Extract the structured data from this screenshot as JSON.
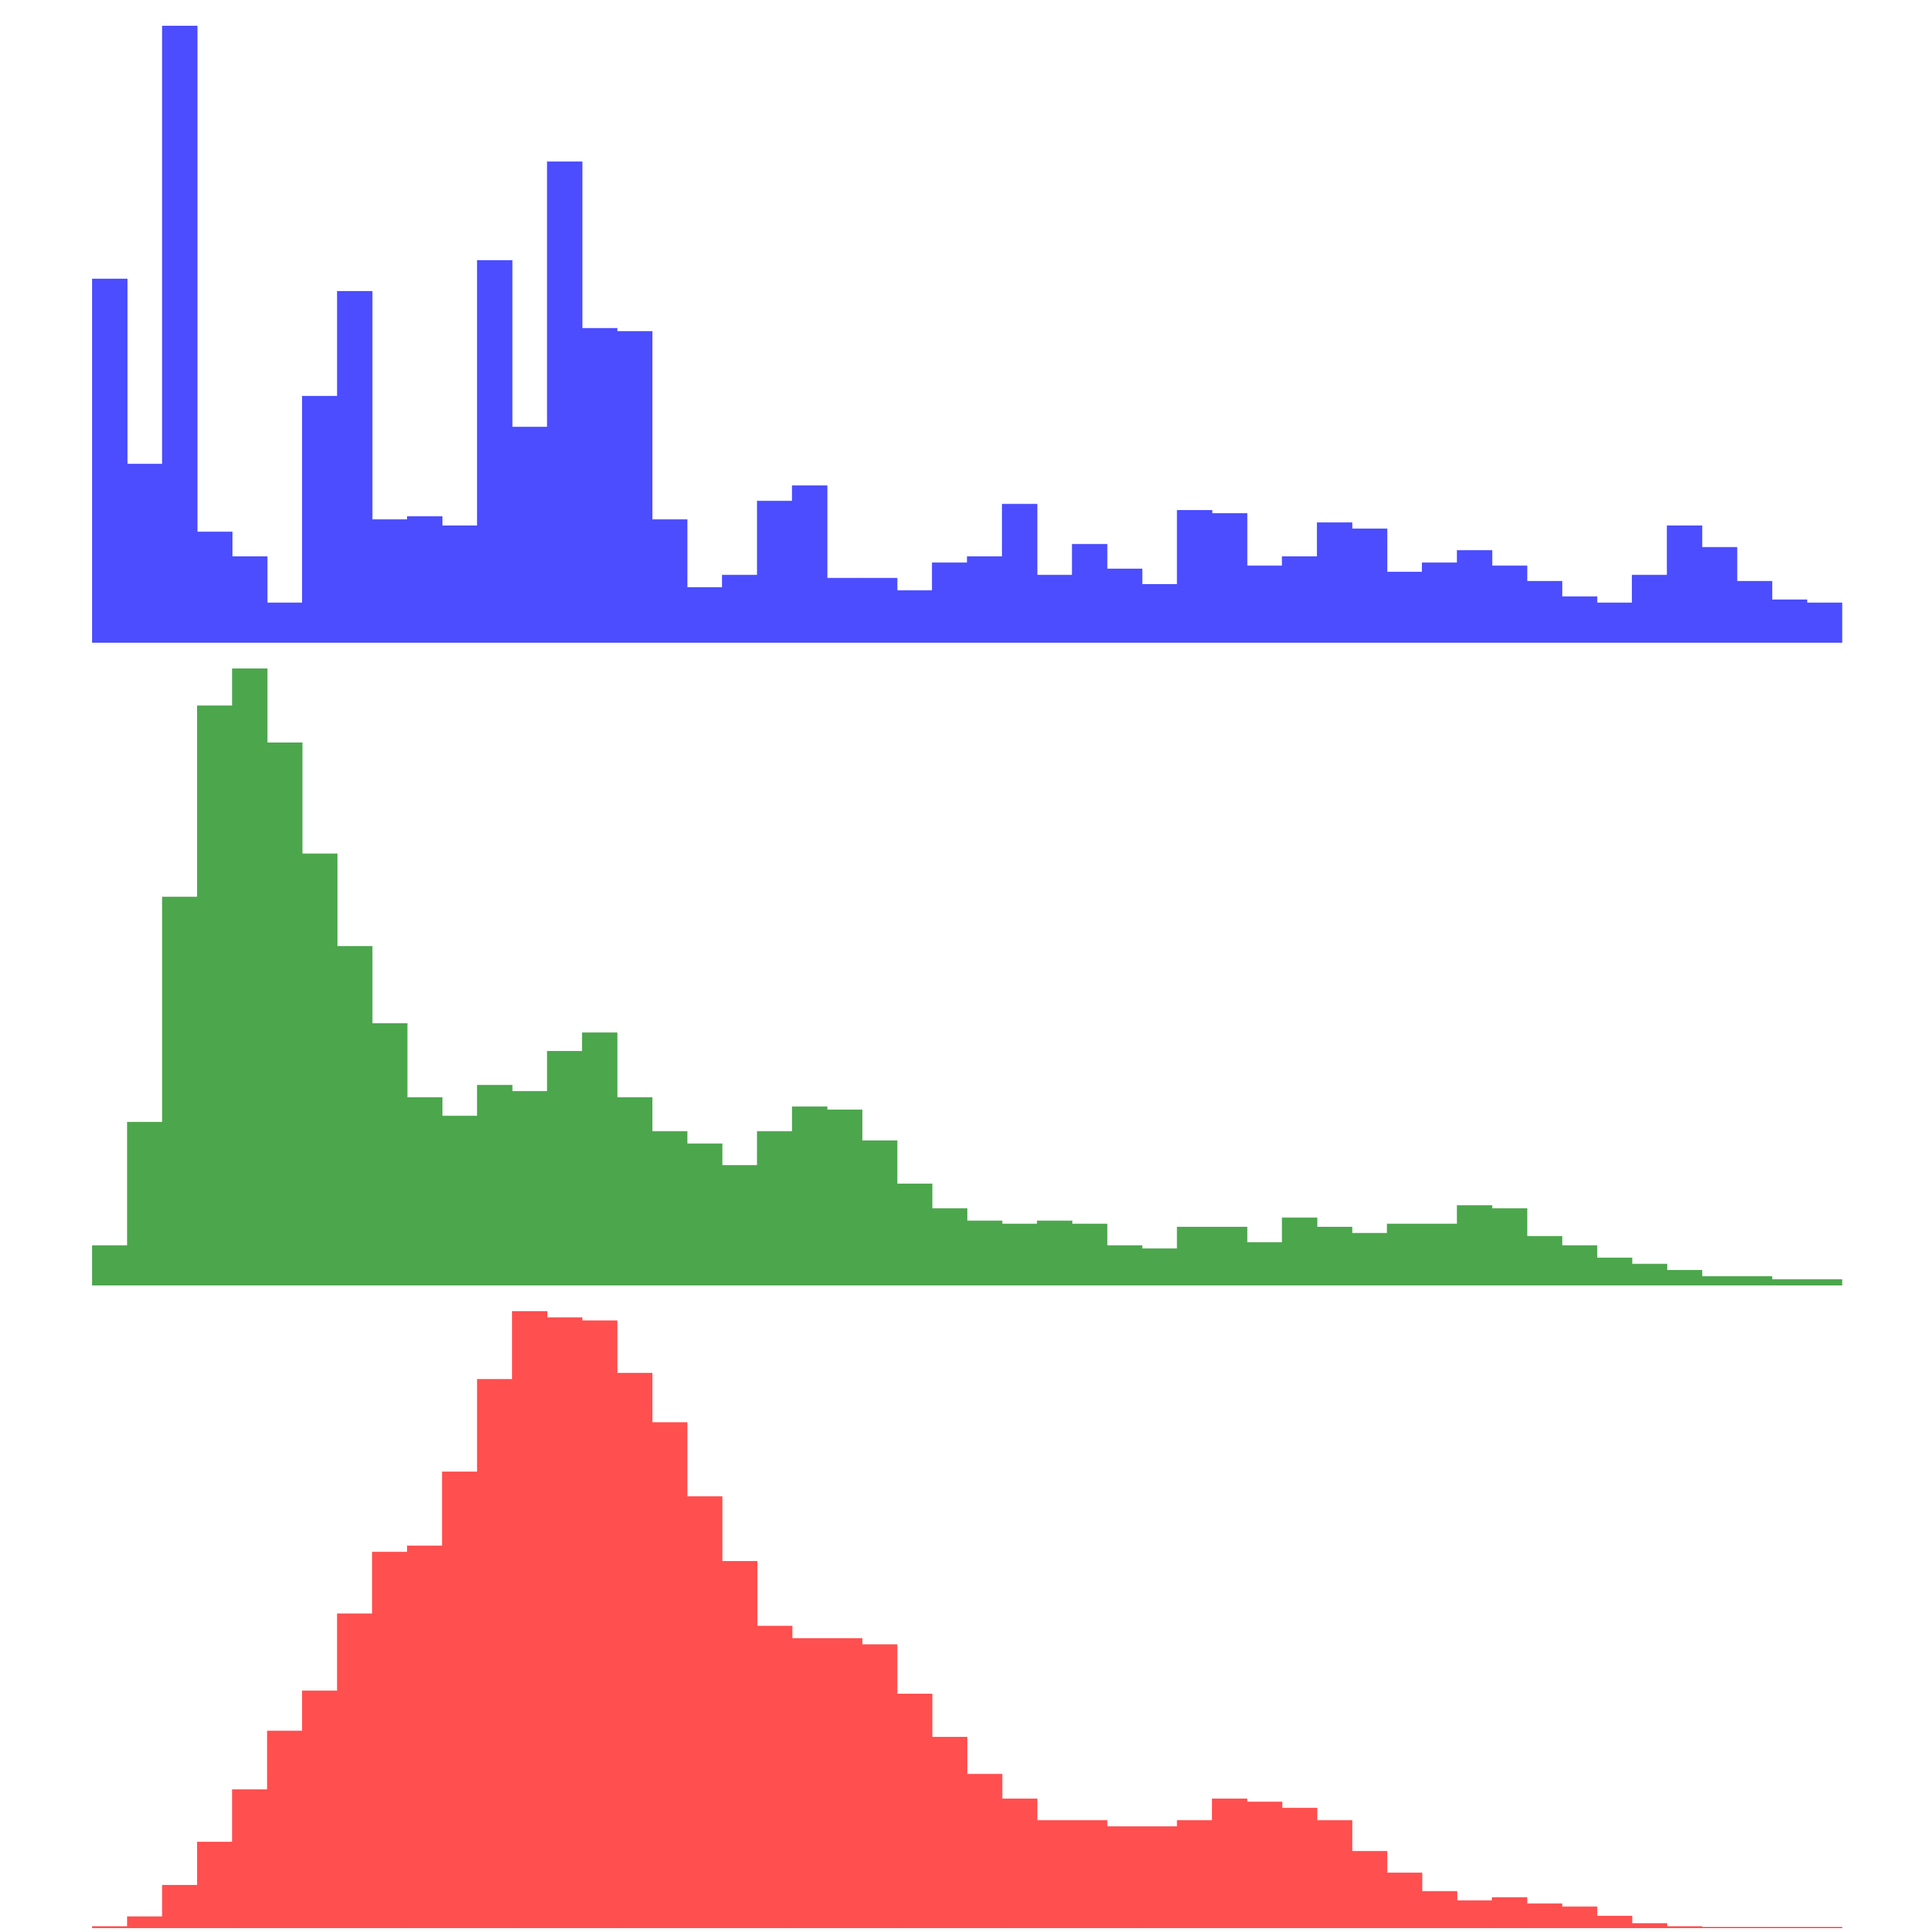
{
  "chart_data": [
    {
      "type": "bar",
      "subtype": "histogram",
      "color": "#4b4dff",
      "bins": 50,
      "ylim": [
        0,
        100
      ],
      "grid": false,
      "legend": "none",
      "values": [
        59,
        29,
        100,
        18,
        14,
        6.5,
        40,
        57,
        20,
        20.5,
        19,
        62,
        35,
        78,
        51,
        50.5,
        20,
        9,
        11,
        23,
        25.5,
        10.5,
        10.5,
        8.5,
        13,
        14,
        22.5,
        11,
        16,
        12,
        9.5,
        21.5,
        21,
        12.5,
        14,
        19.5,
        18.5,
        11.5,
        13,
        15,
        12.5,
        10,
        7.5,
        6.5,
        11,
        19,
        15.5,
        10,
        7,
        6.5
      ]
    },
    {
      "type": "bar",
      "subtype": "histogram",
      "color": "#4ca64c",
      "bins": 50,
      "ylim": [
        0,
        100
      ],
      "grid": false,
      "legend": "none",
      "values": [
        6.5,
        26.5,
        63,
        94,
        100,
        88,
        70,
        55,
        42.5,
        30.5,
        27.5,
        32.5,
        31.5,
        38,
        41,
        30.5,
        25,
        23,
        19.5,
        25,
        29,
        28.5,
        23.5,
        16.5,
        12.5,
        10.5,
        10,
        10.5,
        10,
        6.5,
        6,
        9.5,
        9.5,
        7,
        11,
        9.5,
        8.5,
        10,
        10,
        13,
        12.5,
        8,
        6.5,
        4.5,
        3.5,
        2.5,
        1.5,
        1.5,
        1,
        1
      ]
    },
    {
      "type": "bar",
      "subtype": "histogram",
      "color": "#ff4f4f",
      "bins": 50,
      "ylim": [
        0,
        100
      ],
      "grid": false,
      "legend": "none",
      "values": [
        0.3,
        1.9,
        7,
        14,
        22.5,
        32,
        38.5,
        51,
        61,
        62,
        74,
        89,
        100,
        99,
        98.5,
        90,
        82,
        70,
        59.5,
        49,
        47,
        47,
        46,
        38,
        31,
        25,
        21,
        17.5,
        17.5,
        16.5,
        16.5,
        17.5,
        21,
        20.5,
        19.5,
        17.5,
        12.5,
        9,
        6,
        4.5,
        5,
        4,
        3.5,
        2,
        0.8,
        0.3,
        0.2,
        0.2,
        0.2,
        0.2
      ]
    }
  ]
}
